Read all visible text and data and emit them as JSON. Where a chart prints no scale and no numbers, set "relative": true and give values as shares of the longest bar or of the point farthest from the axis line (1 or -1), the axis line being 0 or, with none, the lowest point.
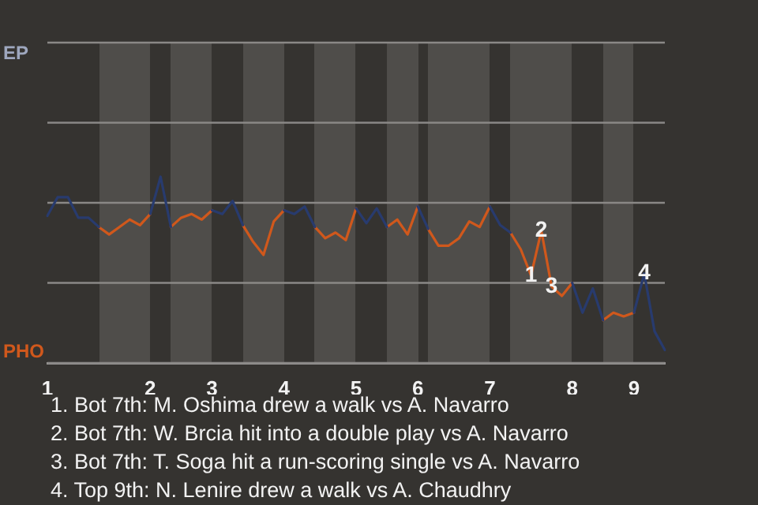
{
  "chart_data": {
    "type": "line",
    "relative": true,
    "categories": [
      "1",
      null,
      null,
      null,
      null,
      null,
      null,
      null,
      null,
      null,
      "2",
      null,
      null,
      null,
      null,
      null,
      "3",
      null,
      null,
      null,
      null,
      null,
      null,
      "4",
      null,
      null,
      null,
      null,
      null,
      null,
      "5",
      null,
      null,
      null,
      null,
      null,
      "6",
      null,
      null,
      null,
      null,
      null,
      null,
      "7",
      null,
      null,
      null,
      null,
      null,
      null,
      null,
      "8",
      null,
      null,
      null,
      null,
      null,
      "9",
      null,
      null,
      null
    ],
    "series": [
      {
        "color": "#283b6e",
        "values": [
          0.79,
          0.89,
          0.89,
          0.78,
          0.78,
          0.73,
          null,
          null,
          null,
          null,
          0.8,
          1,
          0.73,
          null,
          null,
          null,
          0.82,
          0.8,
          0.87,
          0.74,
          null,
          null,
          null,
          0.82,
          0.8,
          0.84,
          0.73,
          null,
          null,
          null,
          0.83,
          0.75,
          0.83,
          0.73,
          null,
          null,
          0.84,
          0.72,
          null,
          null,
          null,
          null,
          null,
          0.84,
          0.74,
          0.7,
          null,
          null,
          null,
          null,
          null,
          0.43,
          0.27,
          0.4,
          0.23,
          null,
          null,
          0.27,
          0.48,
          0.17,
          0.07
        ]
      },
      {
        "color": "#d0581c",
        "values": [
          null,
          null,
          null,
          null,
          null,
          0.73,
          0.69,
          0.73,
          0.77,
          0.74,
          0.8,
          null,
          0.73,
          0.78,
          0.8,
          0.77,
          0.82,
          null,
          null,
          0.74,
          0.65,
          0.58,
          0.76,
          0.82,
          null,
          null,
          0.73,
          0.67,
          0.7,
          0.66,
          0.83,
          null,
          null,
          0.73,
          0.77,
          0.69,
          0.84,
          null,
          null,
          null,
          null,
          null,
          null,
          null,
          null,
          0.7,
          0.61,
          0.47,
          0.71,
          0.41,
          0.36,
          0.43,
          null,
          null,
          0.23,
          0.27,
          0.25,
          0.27,
          null,
          null,
          null
        ]
      },
      {
        "color": "#d0581c",
        "values": [
          null,
          null,
          null,
          null,
          null,
          null,
          null,
          null,
          null,
          null,
          null,
          null,
          null,
          null,
          null,
          null,
          null,
          null,
          null,
          null,
          null,
          null,
          null,
          null,
          null,
          null,
          null,
          null,
          null,
          null,
          null,
          null,
          null,
          null,
          null,
          null,
          null,
          0.72,
          0.63,
          0.63,
          0.67,
          0.76,
          0.73,
          0.84,
          null,
          null,
          null,
          null,
          null,
          null,
          null,
          null,
          null,
          null,
          null,
          null,
          null,
          null,
          null,
          null,
          null
        ]
      }
    ],
    "marker": "none",
    "ref_lines": [
      {
        "axis": "y",
        "value": 0,
        "label": "PHO",
        "color": "#8a8886"
      },
      {
        "axis": "y",
        "value": 0.43,
        "label": null,
        "color": "#8a8886"
      },
      {
        "axis": "y",
        "value": 0.86,
        "label": null,
        "color": "#8a8886"
      },
      {
        "axis": "y",
        "value": 1.29,
        "label": null,
        "color": "#8a8886"
      },
      {
        "axis": "y",
        "value": 1.72,
        "label": "EP",
        "color": "#8a8886"
      }
    ],
    "annotations": [
      {
        "text": "1",
        "y": 0.47
      },
      {
        "text": "2",
        "y": 0.71
      },
      {
        "text": "3",
        "y": 0.41
      },
      {
        "text": "4",
        "y": 0.48
      },
      "1. Bot 7th: M. Oshima drew a walk vs A. Navarro",
      "2. Bot 7th: W. Brcia hit into a double play vs A. Navarro",
      "3. Bot 7th: T. Soga hit a run-scoring single vs A. Navarro",
      "4. Top 9th: N. Lenire drew a walk vs A. Chaudhry"
    ]
  }
}
